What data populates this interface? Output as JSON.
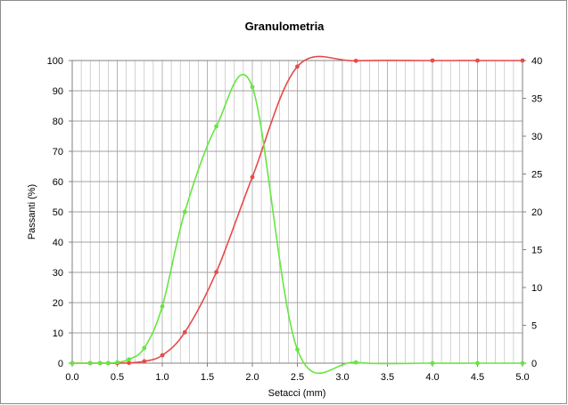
{
  "chart_data": {
    "type": "line",
    "title": "Granulometria",
    "xlabel": "Setacci (mm)",
    "ylabel": "Passanti (%)",
    "xlim": [
      0,
      5
    ],
    "ylim": [
      0,
      100
    ],
    "y2lim": [
      0,
      40
    ],
    "x_ticks": [
      "0.0",
      "0.5",
      "1.0",
      "1.5",
      "2.0",
      "2.5",
      "3.0",
      "3.5",
      "4.0",
      "4.5",
      "5.0"
    ],
    "y_ticks": [
      "0",
      "10",
      "20",
      "30",
      "40",
      "50",
      "60",
      "70",
      "80",
      "90",
      "100"
    ],
    "y2_ticks": [
      "0",
      "5",
      "10",
      "15",
      "20",
      "25",
      "30",
      "35",
      "40"
    ],
    "grid": true,
    "legend": "none",
    "colors": {
      "cumulative": "#e84a4a",
      "frequency": "#66e640",
      "grid": "#b4b4b4",
      "plot_border": "#808080"
    },
    "series": [
      {
        "axis": "left",
        "color": "#e84a4a",
        "x": [
          0,
          0.2,
          0.31,
          0.4,
          0.5,
          0.63,
          0.8,
          1.0,
          1.25,
          1.6,
          2.0,
          2.5,
          3.15,
          4.0,
          4.5,
          5.0
        ],
        "values": [
          0,
          0,
          0,
          0,
          0,
          0.1,
          0.6,
          2.6,
          10.2,
          30.1,
          61.5,
          98.0,
          99.9,
          100,
          100,
          100
        ]
      },
      {
        "axis": "right",
        "color": "#66e640",
        "x": [
          0,
          0.2,
          0.31,
          0.4,
          0.5,
          0.63,
          0.8,
          1.0,
          1.25,
          1.6,
          2.0,
          2.5,
          3.15,
          4.0,
          4.5,
          5.0
        ],
        "values": [
          0,
          0,
          0,
          0,
          0.1,
          0.5,
          2.0,
          7.5,
          20.0,
          31.3,
          36.5,
          1.8,
          0.1,
          0,
          0,
          0
        ]
      }
    ]
  }
}
